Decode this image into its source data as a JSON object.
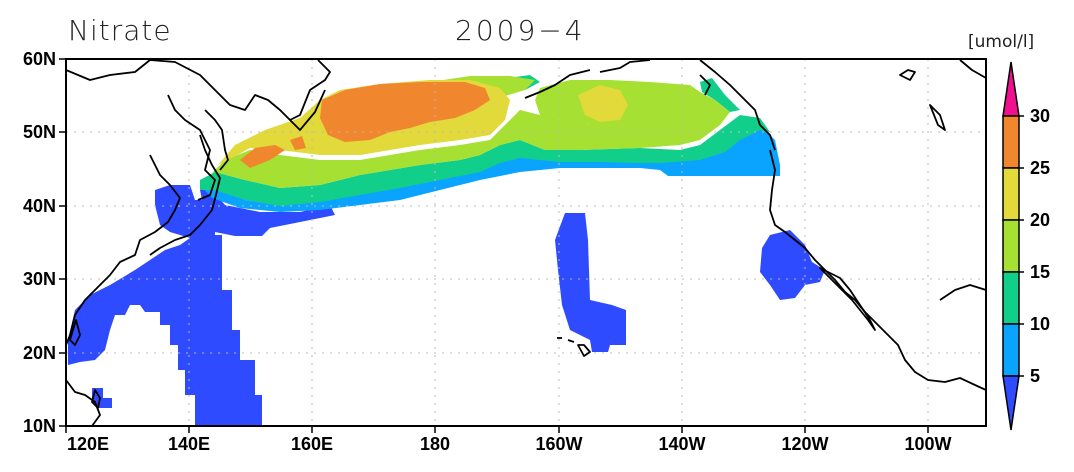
{
  "title": {
    "variable": "Nitrate",
    "date": "2009−4"
  },
  "colorbar": {
    "unit": "[umol/l]",
    "levels": [
      "5",
      "10",
      "15",
      "20",
      "25",
      "30"
    ],
    "colors": [
      "#2e4bff",
      "#0aa4ff",
      "#11cf8a",
      "#a6e032",
      "#e2d93a",
      "#f0862e",
      "#ef0f8f"
    ]
  },
  "axes": {
    "x_ticks": [
      "120E",
      "140E",
      "160E",
      "180",
      "160W",
      "140W",
      "120W",
      "100W"
    ],
    "y_ticks": [
      "10N",
      "20N",
      "30N",
      "40N",
      "50N",
      "60N"
    ]
  },
  "chart_data": {
    "type": "map-contour",
    "variable": "Nitrate",
    "date": "2009-4",
    "units": "umol/l",
    "lon_range": [
      "120E",
      "90W"
    ],
    "lat_range": [
      "10N",
      "60N"
    ],
    "contour_levels": [
      5,
      10,
      15,
      20,
      25,
      30
    ],
    "grid": "dotted"
  }
}
